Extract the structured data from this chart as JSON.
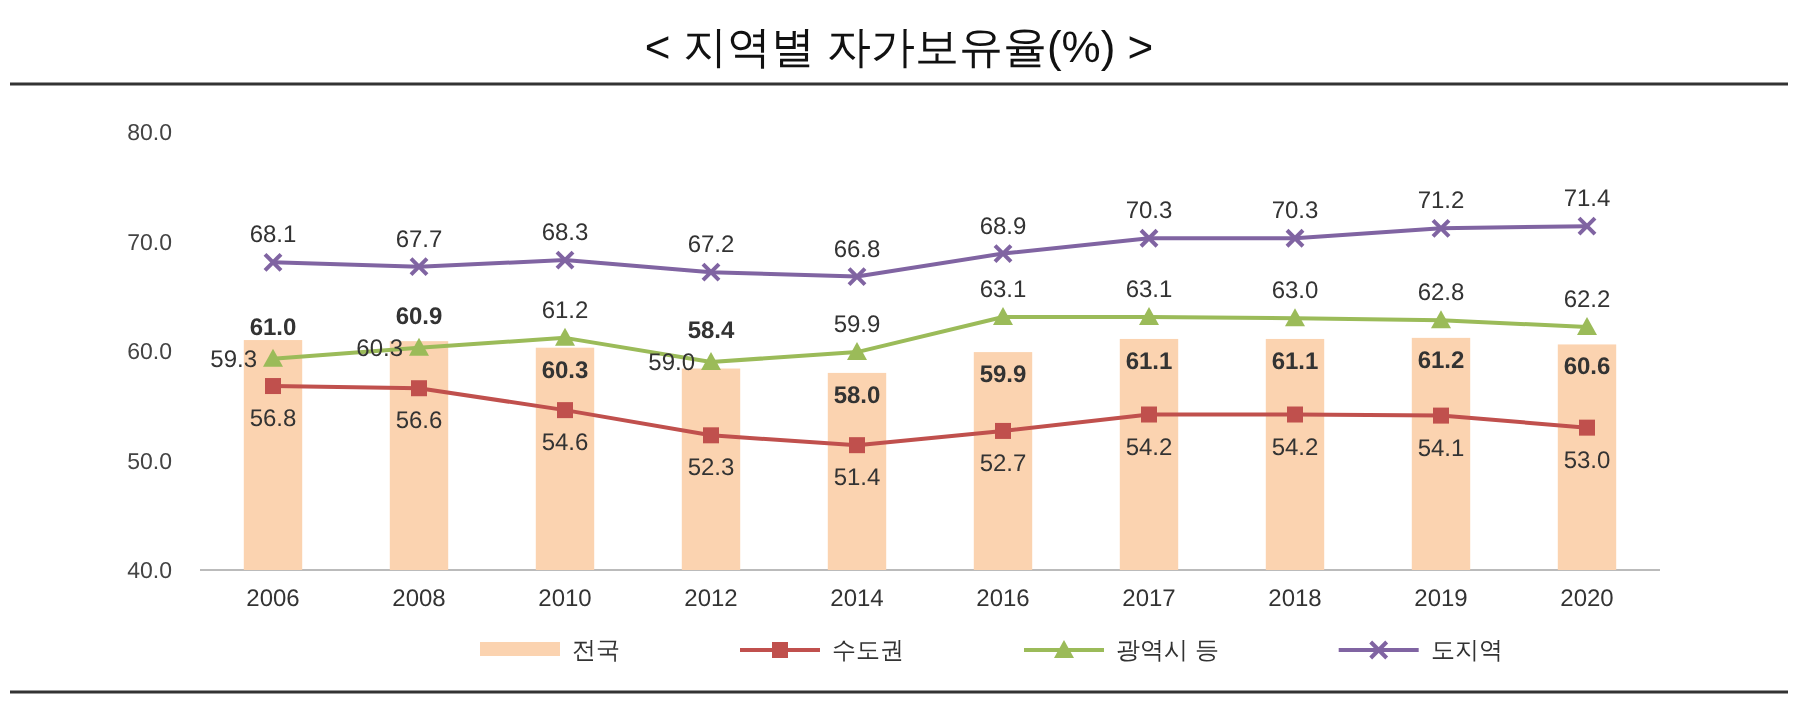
{
  "chart_data": {
    "type": "bar",
    "title": "< 지역별 자가보유율(%) >",
    "categories": [
      "2006",
      "2008",
      "2010",
      "2012",
      "2014",
      "2016",
      "2017",
      "2018",
      "2019",
      "2020"
    ],
    "series": [
      {
        "name": "전국",
        "color": "#fbd3b0",
        "values": [
          61.0,
          60.9,
          60.3,
          58.4,
          58.0,
          59.9,
          61.1,
          61.1,
          61.2,
          60.6
        ],
        "value_labels": [
          "61.0",
          "60.9",
          "60.3",
          "58.4",
          "58.0",
          "59.9",
          "61.1",
          "61.1",
          "61.2",
          "60.6"
        ]
      },
      {
        "name": "수도권",
        "type": "line",
        "marker": "square",
        "color": "#c0504d",
        "values": [
          56.8,
          56.6,
          54.6,
          52.3,
          51.4,
          52.7,
          54.2,
          54.2,
          54.1,
          53.0
        ],
        "value_labels": [
          "56.8",
          "56.6",
          "54.6",
          "52.3",
          "51.4",
          "52.7",
          "54.2",
          "54.2",
          "54.1",
          "53.0"
        ]
      },
      {
        "name": "광역시 등",
        "type": "line",
        "marker": "triangle",
        "color": "#9bbb59",
        "values": [
          59.3,
          60.3,
          61.2,
          59.0,
          59.9,
          63.1,
          63.1,
          63.0,
          62.8,
          62.2
        ],
        "value_labels": [
          "59.3",
          "60.3",
          "61.2",
          "59.0",
          "59.9",
          "63.1",
          "63.1",
          "63.0",
          "62.8",
          "62.2"
        ]
      },
      {
        "name": "도지역",
        "type": "line",
        "marker": "cross",
        "color": "#8064a2",
        "values": [
          68.1,
          67.7,
          68.3,
          67.2,
          66.8,
          68.9,
          70.3,
          70.3,
          71.2,
          71.4
        ],
        "value_labels": [
          "68.1",
          "67.7",
          "68.3",
          "67.2",
          "66.8",
          "68.9",
          "70.3",
          "70.3",
          "71.2",
          "71.4"
        ]
      }
    ],
    "ylim": [
      40,
      80
    ],
    "yticks": [
      {
        "value": 40,
        "label": "40.0"
      },
      {
        "value": 50,
        "label": "50.0"
      },
      {
        "value": 60,
        "label": "60.0"
      },
      {
        "value": 70,
        "label": "70.0"
      },
      {
        "value": 80,
        "label": "80.0"
      }
    ],
    "legend": "bottom",
    "grid": false
  }
}
